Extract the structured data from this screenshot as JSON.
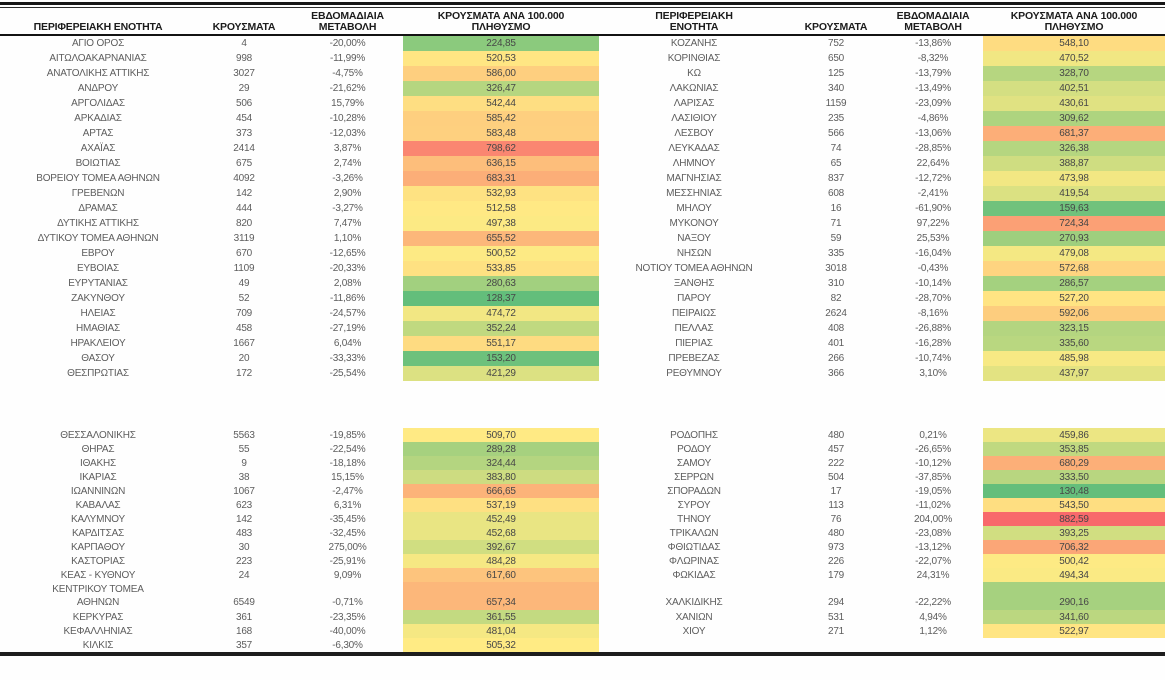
{
  "heatmap": {
    "min": 128.37,
    "mid": 505.48,
    "max": 882.59,
    "min_color": "#63BE7B",
    "mid_color": "#FFEB84",
    "max_color": "#F8696B"
  },
  "tables": [
    {
      "headers": [
        "ΠΕΡΙΦΕΡΕΙΑΚΗ ΕΝΟΤΗΤΑ",
        "ΚΡΟΥΣΜΑΤΑ",
        "ΕΒΔΟΜΑΔΙΑΙΑ\nΜΕΤΑΒΟΛΗ",
        "ΚΡΟΥΣΜΑΤΑ ΑΝΑ 100.000\nΠΛΗΘΥΣΜΟ"
      ],
      "groups": [
        {
          "rows": [
            {
              "name": "ΑΓΙΟ ΟΡΟΣ",
              "cases": "4",
              "change": "-20,00%",
              "per100k": "224,85"
            },
            {
              "name": "ΑΙΤΩΛΟΑΚΑΡΝΑΝΙΑΣ",
              "cases": "998",
              "change": "-11,99%",
              "per100k": "520,53"
            },
            {
              "name": "ΑΝΑΤΟΛΙΚΗΣ ΑΤΤΙΚΗΣ",
              "cases": "3027",
              "change": "-4,75%",
              "per100k": "586,00"
            },
            {
              "name": "ΑΝΔΡΟΥ",
              "cases": "29",
              "change": "-21,62%",
              "per100k": "326,47"
            },
            {
              "name": "ΑΡΓΟΛΙΔΑΣ",
              "cases": "506",
              "change": "15,79%",
              "per100k": "542,44"
            },
            {
              "name": "ΑΡΚΑΔΙΑΣ",
              "cases": "454",
              "change": "-10,28%",
              "per100k": "585,42"
            },
            {
              "name": "ΑΡΤΑΣ",
              "cases": "373",
              "change": "-12,03%",
              "per100k": "583,48"
            },
            {
              "name": "ΑΧΑΪΑΣ",
              "cases": "2414",
              "change": "3,87%",
              "per100k": "798,62"
            },
            {
              "name": "ΒΟΙΩΤΙΑΣ",
              "cases": "675",
              "change": "2,74%",
              "per100k": "636,15"
            },
            {
              "name": "ΒΟΡΕΙΟΥ ΤΟΜΕΑ ΑΘΗΝΩΝ",
              "cases": "4092",
              "change": "-3,26%",
              "per100k": "683,31"
            },
            {
              "name": "ΓΡΕΒΕΝΩΝ",
              "cases": "142",
              "change": "2,90%",
              "per100k": "532,93"
            },
            {
              "name": "ΔΡΑΜΑΣ",
              "cases": "444",
              "change": "-3,27%",
              "per100k": "512,58"
            },
            {
              "name": "ΔΥΤΙΚΗΣ ΑΤΤΙΚΗΣ",
              "cases": "820",
              "change": "7,47%",
              "per100k": "497,38"
            },
            {
              "name": "ΔΥΤΙΚΟΥ ΤΟΜΕΑ ΑΘΗΝΩΝ",
              "cases": "3119",
              "change": "1,10%",
              "per100k": "655,52"
            },
            {
              "name": "ΕΒΡΟΥ",
              "cases": "670",
              "change": "-12,65%",
              "per100k": "500,52"
            },
            {
              "name": "ΕΥΒΟΙΑΣ",
              "cases": "1109",
              "change": "-20,33%",
              "per100k": "533,85"
            },
            {
              "name": "ΕΥΡΥΤΑΝΙΑΣ",
              "cases": "49",
              "change": "2,08%",
              "per100k": "280,63"
            },
            {
              "name": "ΖΑΚΥΝΘΟΥ",
              "cases": "52",
              "change": "-11,86%",
              "per100k": "128,37"
            },
            {
              "name": "ΗΛΕΙΑΣ",
              "cases": "709",
              "change": "-24,57%",
              "per100k": "474,72"
            },
            {
              "name": "ΗΜΑΘΙΑΣ",
              "cases": "458",
              "change": "-27,19%",
              "per100k": "352,24"
            },
            {
              "name": "ΗΡΑΚΛΕΙΟΥ",
              "cases": "1667",
              "change": "6,04%",
              "per100k": "551,17"
            },
            {
              "name": "ΘΑΣΟΥ",
              "cases": "20",
              "change": "-33,33%",
              "per100k": "153,20"
            },
            {
              "name": "ΘΕΣΠΡΩΤΙΑΣ",
              "cases": "172",
              "change": "-25,54%",
              "per100k": "421,29"
            }
          ]
        },
        {
          "rows": [
            {
              "name": "ΘΕΣΣΑΛΟΝΙΚΗΣ",
              "cases": "5563",
              "change": "-19,85%",
              "per100k": "509,70"
            },
            {
              "name": "ΘΗΡΑΣ",
              "cases": "55",
              "change": "-22,54%",
              "per100k": "289,28"
            },
            {
              "name": "ΙΘΑΚΗΣ",
              "cases": "9",
              "change": "-18,18%",
              "per100k": "324,44"
            },
            {
              "name": "ΙΚΑΡΙΑΣ",
              "cases": "38",
              "change": "15,15%",
              "per100k": "383,80"
            },
            {
              "name": "ΙΩΑΝΝΙΝΩΝ",
              "cases": "1067",
              "change": "-2,47%",
              "per100k": "666,65"
            },
            {
              "name": "ΚΑΒΑΛΑΣ",
              "cases": "623",
              "change": "6,31%",
              "per100k": "537,19"
            },
            {
              "name": "ΚΑΛΥΜΝΟΥ",
              "cases": "142",
              "change": "-35,45%",
              "per100k": "452,49"
            },
            {
              "name": "ΚΑΡΔΙΤΣΑΣ",
              "cases": "483",
              "change": "-32,45%",
              "per100k": "452,68"
            },
            {
              "name": "ΚΑΡΠΑΘΟΥ",
              "cases": "30",
              "change": "275,00%",
              "per100k": "392,67"
            },
            {
              "name": "ΚΑΣΤΟΡΙΑΣ",
              "cases": "223",
              "change": "-25,91%",
              "per100k": "484,28"
            },
            {
              "name": "ΚΕΑΣ - ΚΥΘΝΟΥ",
              "cases": "24",
              "change": "9,09%",
              "per100k": "617,60"
            },
            {
              "name": "ΚΕΝΤΡΙΚΟΥ ΤΟΜΕΑ\nΑΘΗΝΩΝ",
              "cases": "6549",
              "change": "-0,71%",
              "per100k": "657,34",
              "tall": true
            },
            {
              "name": "ΚΕΡΚΥΡΑΣ",
              "cases": "361",
              "change": "-23,35%",
              "per100k": "361,55"
            },
            {
              "name": "ΚΕΦΑΛΛΗΝΙΑΣ",
              "cases": "168",
              "change": "-40,00%",
              "per100k": "481,04"
            },
            {
              "name": "ΚΙΛΚΙΣ",
              "cases": "357",
              "change": "-6,30%",
              "per100k": "505,32"
            }
          ]
        }
      ]
    },
    {
      "headers": [
        "ΠΕΡΙΦΕΡΕΙΑΚΗ\nΕΝΟΤΗΤΑ",
        "ΚΡΟΥΣΜΑΤΑ",
        "ΕΒΔΟΜΑΔΙΑΙΑ\nΜΕΤΑΒΟΛΗ",
        "ΚΡΟΥΣΜΑΤΑ ΑΝΑ 100.000\nΠΛΗΘΥΣΜΟ"
      ],
      "groups": [
        {
          "rows": [
            {
              "name": "ΚΟΖΑΝΗΣ",
              "cases": "752",
              "change": "-13,86%",
              "per100k": "548,10"
            },
            {
              "name": "ΚΟΡΙΝΘΙΑΣ",
              "cases": "650",
              "change": "-8,32%",
              "per100k": "470,52"
            },
            {
              "name": "ΚΩ",
              "cases": "125",
              "change": "-13,79%",
              "per100k": "328,70"
            },
            {
              "name": "ΛΑΚΩΝΙΑΣ",
              "cases": "340",
              "change": "-13,49%",
              "per100k": "402,51"
            },
            {
              "name": "ΛΑΡΙΣΑΣ",
              "cases": "1159",
              "change": "-23,09%",
              "per100k": "430,61"
            },
            {
              "name": "ΛΑΣΙΘΙΟΥ",
              "cases": "235",
              "change": "-4,86%",
              "per100k": "309,62"
            },
            {
              "name": "ΛΕΣΒΟΥ",
              "cases": "566",
              "change": "-13,06%",
              "per100k": "681,37"
            },
            {
              "name": "ΛΕΥΚΑΔΑΣ",
              "cases": "74",
              "change": "-28,85%",
              "per100k": "326,38"
            },
            {
              "name": "ΛΗΜΝΟΥ",
              "cases": "65",
              "change": "22,64%",
              "per100k": "388,87"
            },
            {
              "name": "ΜΑΓΝΗΣΙΑΣ",
              "cases": "837",
              "change": "-12,72%",
              "per100k": "473,98"
            },
            {
              "name": "ΜΕΣΣΗΝΙΑΣ",
              "cases": "608",
              "change": "-2,41%",
              "per100k": "419,54"
            },
            {
              "name": "ΜΗΛΟΥ",
              "cases": "16",
              "change": "-61,90%",
              "per100k": "159,63"
            },
            {
              "name": "ΜΥΚΟΝΟΥ",
              "cases": "71",
              "change": "97,22%",
              "per100k": "724,34"
            },
            {
              "name": "ΝΑΞΟΥ",
              "cases": "59",
              "change": "25,53%",
              "per100k": "270,93"
            },
            {
              "name": "ΝΗΣΩΝ",
              "cases": "335",
              "change": "-16,04%",
              "per100k": "479,08"
            },
            {
              "name": "ΝΟΤΙΟΥ ΤΟΜΕΑ ΑΘΗΝΩΝ",
              "cases": "3018",
              "change": "-0,43%",
              "per100k": "572,68"
            },
            {
              "name": "ΞΑΝΘΗΣ",
              "cases": "310",
              "change": "-10,14%",
              "per100k": "286,57"
            },
            {
              "name": "ΠΑΡΟΥ",
              "cases": "82",
              "change": "-28,70%",
              "per100k": "527,20"
            },
            {
              "name": "ΠΕΙΡΑΙΩΣ",
              "cases": "2624",
              "change": "-8,16%",
              "per100k": "592,06"
            },
            {
              "name": "ΠΕΛΛΑΣ",
              "cases": "408",
              "change": "-26,88%",
              "per100k": "323,15"
            },
            {
              "name": "ΠΙΕΡΙΑΣ",
              "cases": "401",
              "change": "-16,28%",
              "per100k": "335,60"
            },
            {
              "name": "ΠΡΕΒΕΖΑΣ",
              "cases": "266",
              "change": "-10,74%",
              "per100k": "485,98"
            },
            {
              "name": "ΡΕΘΥΜΝΟΥ",
              "cases": "366",
              "change": "3,10%",
              "per100k": "437,97"
            }
          ]
        },
        {
          "rows": [
            {
              "name": "ΡΟΔΟΠΗΣ",
              "cases": "480",
              "change": "0,21%",
              "per100k": "459,86"
            },
            {
              "name": "ΡΟΔΟΥ",
              "cases": "457",
              "change": "-26,65%",
              "per100k": "353,85"
            },
            {
              "name": "ΣΑΜΟΥ",
              "cases": "222",
              "change": "-10,12%",
              "per100k": "680,29"
            },
            {
              "name": "ΣΕΡΡΩΝ",
              "cases": "504",
              "change": "-37,85%",
              "per100k": "333,50"
            },
            {
              "name": "ΣΠΟΡΑΔΩΝ",
              "cases": "17",
              "change": "-19,05%",
              "per100k": "130,48"
            },
            {
              "name": "ΣΥΡΟΥ",
              "cases": "113",
              "change": "-11,02%",
              "per100k": "543,50"
            },
            {
              "name": "ΤΗΝΟΥ",
              "cases": "76",
              "change": "204,00%",
              "per100k": "882,59"
            },
            {
              "name": "ΤΡΙΚΑΛΩΝ",
              "cases": "480",
              "change": "-23,08%",
              "per100k": "393,25"
            },
            {
              "name": "ΦΘΙΩΤΙΔΑΣ",
              "cases": "973",
              "change": "-13,12%",
              "per100k": "706,32"
            },
            {
              "name": "ΦΛΩΡΙΝΑΣ",
              "cases": "226",
              "change": "-22,07%",
              "per100k": "500,42"
            },
            {
              "name": "ΦΩΚΙΔΑΣ",
              "cases": "179",
              "change": "24,31%",
              "per100k": "494,34"
            },
            {
              "name": "ΧΑΛΚΙΔΙΚΗΣ",
              "cases": "294",
              "change": "-22,22%",
              "per100k": "290,16",
              "tall": true
            },
            {
              "name": "ΧΑΝΙΩΝ",
              "cases": "531",
              "change": "4,94%",
              "per100k": "341,60"
            },
            {
              "name": "ΧΙΟΥ",
              "cases": "271",
              "change": "1,12%",
              "per100k": "522,97"
            }
          ]
        }
      ]
    }
  ]
}
